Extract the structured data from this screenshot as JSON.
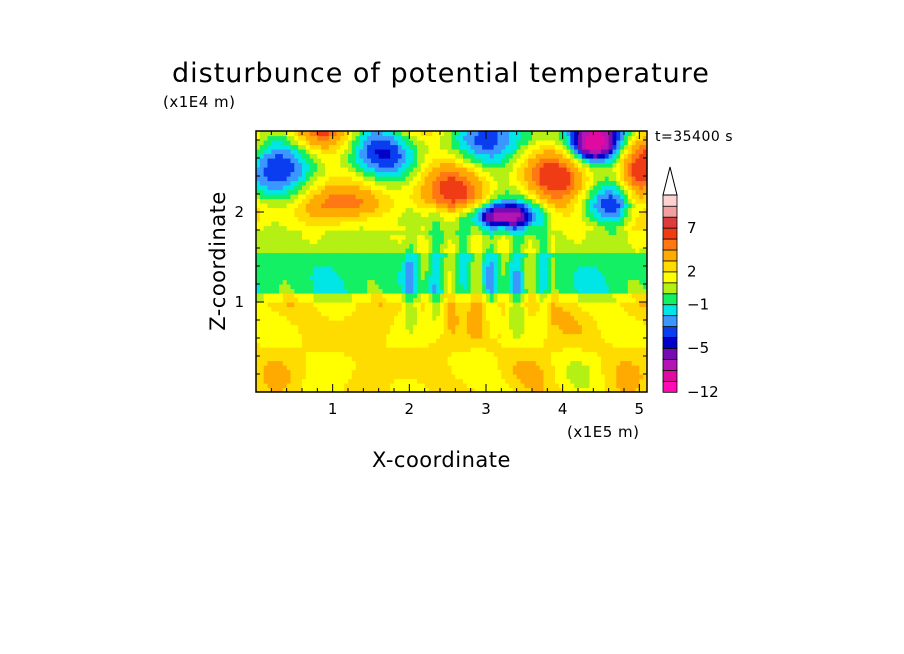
{
  "chart_data": {
    "type": "heatmap",
    "title": "disturbunce of potential temperature",
    "xlabel": "X-coordinate",
    "ylabel": "Z-coordinate",
    "x_unit": "(x1E5 m)",
    "y_unit": "(x1E4 m)",
    "time_label": "t=35400 s",
    "xlim": [
      0,
      5.1
    ],
    "ylim": [
      0,
      2.9
    ],
    "x_ticks": [
      1,
      2,
      3,
      4,
      5
    ],
    "y_ticks": [
      1,
      2
    ],
    "colorbar": {
      "levels": [
        -12,
        -10,
        -8,
        -6.5,
        -5,
        -4,
        -3,
        -2,
        -1,
        0,
        1,
        2,
        3,
        4.5,
        5.5,
        7,
        8.5,
        10
      ],
      "colors": [
        "#ff0ab4",
        "#e00aa0",
        "#b414b4",
        "#780ab4",
        "#0000c8",
        "#0a3cf0",
        "#3c96ff",
        "#00e6e6",
        "#14f064",
        "#b4f014",
        "#ffff00",
        "#ffdc00",
        "#ffaa00",
        "#ff7814",
        "#f03c14",
        "#dc3c3c",
        "#f0a0a0",
        "#ffd2d2"
      ],
      "labels": [
        {
          "value": 7,
          "text": "7"
        },
        {
          "value": 2,
          "text": "2"
        },
        {
          "value": -1,
          "text": "−1"
        },
        {
          "value": -5,
          "text": "−5"
        },
        {
          "value": -12,
          "text": "−12"
        }
      ],
      "overflow_arrow": "top"
    }
  }
}
